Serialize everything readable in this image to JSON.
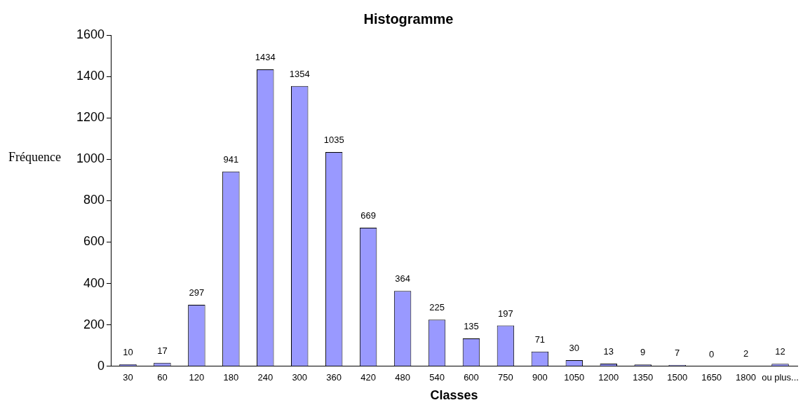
{
  "chart_data": {
    "type": "bar",
    "title": "Histogramme",
    "xlabel": "Classes",
    "ylabel": "Fréquence",
    "categories": [
      "30",
      "60",
      "120",
      "180",
      "240",
      "300",
      "360",
      "420",
      "480",
      "540",
      "600",
      "750",
      "900",
      "1050",
      "1200",
      "1350",
      "1500",
      "1650",
      "1800",
      "ou plus..."
    ],
    "values": [
      10,
      17,
      297,
      941,
      1434,
      1354,
      1035,
      669,
      364,
      225,
      135,
      197,
      71,
      30,
      13,
      9,
      7,
      0,
      2,
      12
    ],
    "color": "#9999ff",
    "ylim": [
      0,
      1600
    ],
    "yticks": [
      0,
      200,
      400,
      600,
      800,
      1000,
      1200,
      1400,
      1600
    ],
    "grid": false,
    "legend": false,
    "data_labels": true
  }
}
